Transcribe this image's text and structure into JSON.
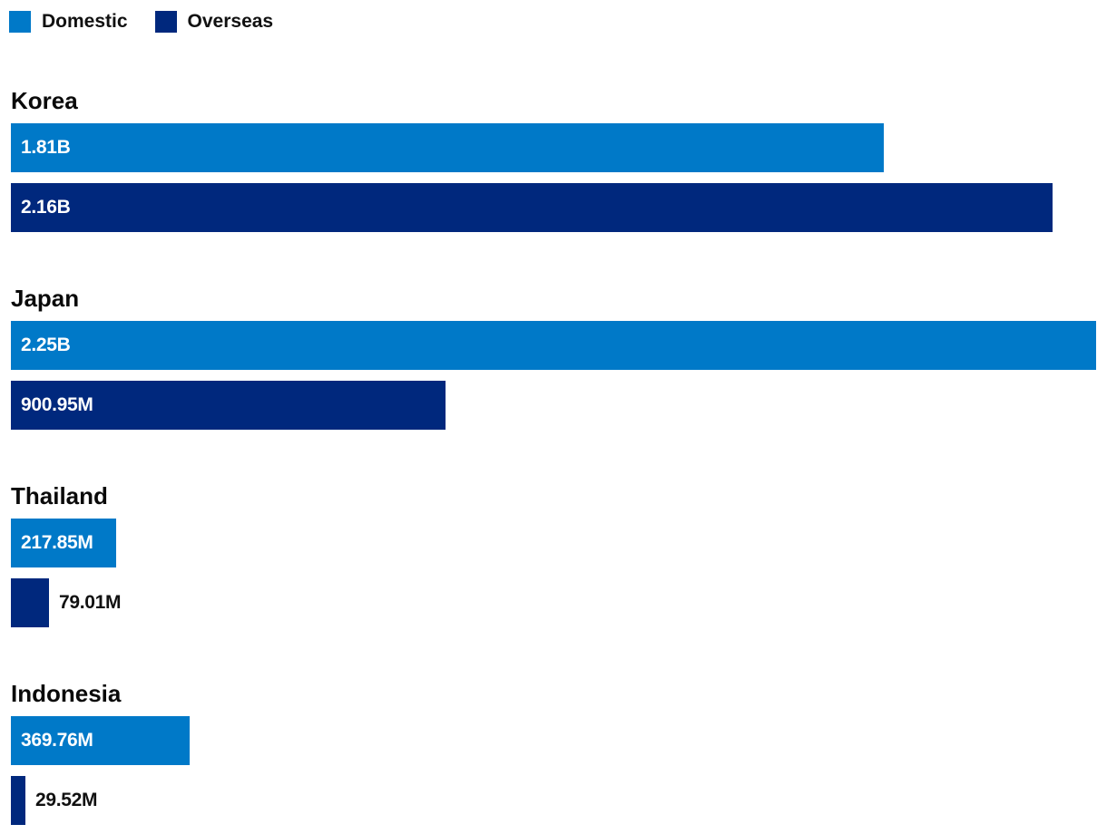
{
  "chart_data": {
    "type": "bar",
    "orientation": "horizontal",
    "categories": [
      "Korea",
      "Japan",
      "Thailand",
      "Indonesia"
    ],
    "series": [
      {
        "name": "Domestic",
        "color": "#0079C8",
        "values": [
          1810000000,
          2250000000,
          217850000,
          369760000
        ],
        "labels": [
          "1.81B",
          "2.25B",
          "217.85M",
          "369.76M"
        ]
      },
      {
        "name": "Overseas",
        "color": "#00287D",
        "values": [
          2160000000,
          900950000,
          79010000,
          29520000
        ],
        "labels": [
          "2.16B",
          "900.95M",
          "79.01M",
          "29.52M"
        ]
      }
    ],
    "xlim": [
      0,
      2250000000
    ],
    "legend": "top-left",
    "grid": false
  }
}
